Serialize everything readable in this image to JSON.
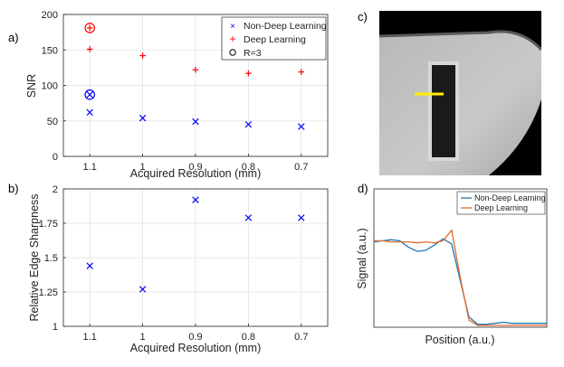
{
  "chart_data": [
    {
      "id": "a",
      "panel_label": "a)",
      "type": "scatter",
      "xlabel": "Acquired Resolution (mm)",
      "ylabel": "SNR",
      "x_tick_labels": [
        "1.1",
        "1",
        "0.9",
        "0.8",
        "0.7"
      ],
      "x_values": [
        1.1,
        1.0,
        0.9,
        0.8,
        0.7
      ],
      "xlim": [
        1.15,
        0.65
      ],
      "ylim": [
        0,
        200
      ],
      "y_ticks": [
        0,
        50,
        100,
        150,
        200
      ],
      "grid": true,
      "legend_position": "top-right",
      "series": [
        {
          "name": "Non-Deep Learning",
          "marker": "x",
          "color": "#0000ff",
          "values": [
            62,
            54,
            49,
            45,
            42
          ]
        },
        {
          "name": "Deep Learning",
          "marker": "+",
          "color": "#ff0000",
          "values": [
            151,
            142,
            122,
            117,
            119
          ]
        }
      ],
      "annotations": [
        {
          "name": "R=3",
          "marker": "circle",
          "x": 1.1,
          "y": 181,
          "color": "#ff0000",
          "inner": "+"
        },
        {
          "name": "R=3",
          "marker": "circle",
          "x": 1.1,
          "y": 87,
          "color": "#0000ff",
          "inner": "x"
        }
      ],
      "legend": [
        {
          "label": "Non-Deep Learning",
          "marker": "x",
          "color": "#0000ff"
        },
        {
          "label": "Deep Learning",
          "marker": "+",
          "color": "#ff0000"
        },
        {
          "label": "R=3",
          "marker": "circle",
          "color": "#000000"
        }
      ]
    },
    {
      "id": "b",
      "panel_label": "b)",
      "type": "scatter",
      "xlabel": "Acquired Resolution (mm)",
      "ylabel": "Relative Edge Sharpness",
      "x_tick_labels": [
        "1.1",
        "1",
        "0.9",
        "0.8",
        "0.7"
      ],
      "x_values": [
        1.1,
        1.0,
        0.9,
        0.8,
        0.7
      ],
      "xlim": [
        1.15,
        0.65
      ],
      "ylim": [
        1,
        2
      ],
      "y_ticks": [
        1,
        1.25,
        1.5,
        1.75,
        2
      ],
      "y_tick_labels": [
        "1",
        "1.25",
        "1.5",
        "1.75",
        "2"
      ],
      "grid": true,
      "series": [
        {
          "name": "Relative Edge Sharpness",
          "marker": "x",
          "color": "#0000ff",
          "values": [
            1.44,
            1.27,
            1.92,
            1.79,
            1.79
          ]
        }
      ]
    },
    {
      "id": "d",
      "panel_label": "d)",
      "type": "line",
      "xlabel": "Position (a.u.)",
      "ylabel": "Signal (a.u.)",
      "axes_ticks": false,
      "legend_position": "top-right",
      "x": [
        0,
        5,
        10,
        15,
        20,
        25,
        30,
        35,
        40,
        45,
        50,
        55,
        60,
        65,
        70,
        75,
        80,
        85,
        90,
        95,
        100
      ],
      "series": [
        {
          "name": "Non-Deep Learning",
          "color": "#1f77b4",
          "values": [
            0.79,
            0.8,
            0.81,
            0.8,
            0.74,
            0.7,
            0.71,
            0.76,
            0.82,
            0.77,
            0.42,
            0.08,
            0.01,
            0.01,
            0.02,
            0.03,
            0.02,
            0.02,
            0.02,
            0.02,
            0.02
          ]
        },
        {
          "name": "Deep Learning",
          "color": "#e36a2e",
          "values": [
            0.8,
            0.8,
            0.79,
            0.79,
            0.79,
            0.78,
            0.79,
            0.78,
            0.8,
            0.9,
            0.45,
            0.05,
            0.0,
            0.0,
            0.0,
            0.0,
            0.0,
            0.0,
            0.0,
            0.0,
            0.0
          ]
        }
      ]
    }
  ],
  "image_panel": {
    "panel_label": "c)",
    "description_icon": "mri-phantom-image"
  }
}
